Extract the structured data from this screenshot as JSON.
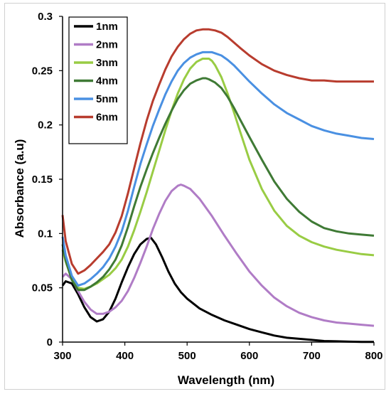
{
  "chart_data": {
    "type": "line",
    "title": "",
    "xlabel": "Wavelength (nm)",
    "ylabel": "Absorbance (a.u)",
    "xlim": [
      300,
      800
    ],
    "ylim": [
      0,
      0.3
    ],
    "x_ticks": [
      "300",
      "400",
      "500",
      "600",
      "700",
      "800"
    ],
    "y_ticks": [
      "0",
      "0.05",
      "0.1",
      "0.15",
      "0.2",
      "0.25",
      "0.3"
    ],
    "grid": false,
    "legend_position": "top-left",
    "series": [
      {
        "name": "1nm",
        "color": "#000000",
        "x": [
          300,
          305,
          315,
          325,
          335,
          345,
          355,
          365,
          375,
          385,
          395,
          405,
          415,
          425,
          435,
          442,
          450,
          460,
          470,
          480,
          490,
          500,
          520,
          540,
          560,
          580,
          600,
          620,
          640,
          660,
          680,
          700,
          720,
          740,
          760,
          780,
          800
        ],
        "y": [
          0.052,
          0.056,
          0.054,
          0.044,
          0.032,
          0.023,
          0.019,
          0.021,
          0.028,
          0.04,
          0.055,
          0.069,
          0.081,
          0.09,
          0.095,
          0.096,
          0.09,
          0.078,
          0.065,
          0.054,
          0.046,
          0.04,
          0.031,
          0.025,
          0.02,
          0.016,
          0.012,
          0.009,
          0.006,
          0.004,
          0.003,
          0.002,
          0.001,
          0.0007,
          0.0004,
          0.0002,
          0.0001
        ]
      },
      {
        "name": "2nm",
        "color": "#b07cc6",
        "x": [
          300,
          305,
          315,
          325,
          335,
          345,
          355,
          365,
          375,
          385,
          395,
          405,
          415,
          425,
          435,
          445,
          455,
          465,
          475,
          485,
          490,
          495,
          505,
          520,
          540,
          560,
          580,
          600,
          620,
          640,
          660,
          680,
          700,
          720,
          740,
          760,
          780,
          800
        ],
        "y": [
          0.06,
          0.063,
          0.058,
          0.047,
          0.037,
          0.03,
          0.026,
          0.026,
          0.028,
          0.032,
          0.038,
          0.047,
          0.059,
          0.073,
          0.088,
          0.104,
          0.118,
          0.13,
          0.139,
          0.144,
          0.145,
          0.144,
          0.141,
          0.132,
          0.116,
          0.098,
          0.081,
          0.065,
          0.052,
          0.041,
          0.033,
          0.027,
          0.023,
          0.02,
          0.018,
          0.017,
          0.016,
          0.015
        ]
      },
      {
        "name": "3nm",
        "color": "#99cc44",
        "x": [
          300,
          305,
          315,
          325,
          335,
          345,
          355,
          365,
          375,
          385,
          395,
          405,
          415,
          425,
          435,
          445,
          455,
          465,
          475,
          485,
          495,
          505,
          515,
          525,
          535,
          540,
          545,
          555,
          565,
          575,
          585,
          600,
          620,
          640,
          660,
          680,
          700,
          720,
          740,
          760,
          780,
          800
        ],
        "y": [
          0.085,
          0.074,
          0.058,
          0.05,
          0.049,
          0.051,
          0.054,
          0.058,
          0.062,
          0.068,
          0.076,
          0.088,
          0.103,
          0.12,
          0.138,
          0.157,
          0.176,
          0.195,
          0.213,
          0.229,
          0.242,
          0.252,
          0.258,
          0.261,
          0.261,
          0.259,
          0.255,
          0.244,
          0.229,
          0.212,
          0.194,
          0.168,
          0.141,
          0.121,
          0.107,
          0.098,
          0.092,
          0.088,
          0.085,
          0.083,
          0.081,
          0.08
        ]
      },
      {
        "name": "4nm",
        "color": "#3f7a35",
        "x": [
          300,
          305,
          315,
          325,
          335,
          345,
          355,
          365,
          375,
          385,
          395,
          405,
          415,
          425,
          435,
          445,
          455,
          465,
          475,
          485,
          495,
          505,
          515,
          525,
          530,
          535,
          545,
          555,
          565,
          575,
          585,
          600,
          620,
          640,
          660,
          680,
          700,
          720,
          740,
          760,
          780,
          800
        ],
        "y": [
          0.09,
          0.075,
          0.057,
          0.048,
          0.048,
          0.051,
          0.055,
          0.06,
          0.067,
          0.076,
          0.089,
          0.106,
          0.125,
          0.143,
          0.159,
          0.174,
          0.188,
          0.201,
          0.213,
          0.224,
          0.232,
          0.238,
          0.241,
          0.243,
          0.243,
          0.242,
          0.239,
          0.234,
          0.226,
          0.216,
          0.205,
          0.189,
          0.168,
          0.148,
          0.132,
          0.12,
          0.111,
          0.105,
          0.102,
          0.1,
          0.099,
          0.098
        ]
      },
      {
        "name": "5nm",
        "color": "#4a90e2",
        "x": [
          300,
          305,
          315,
          325,
          335,
          345,
          355,
          365,
          375,
          385,
          395,
          405,
          415,
          425,
          435,
          445,
          455,
          465,
          475,
          485,
          495,
          505,
          515,
          525,
          535,
          540,
          545,
          555,
          565,
          575,
          585,
          600,
          620,
          640,
          660,
          680,
          700,
          720,
          740,
          760,
          780,
          800
        ],
        "y": [
          0.097,
          0.08,
          0.061,
          0.052,
          0.054,
          0.058,
          0.063,
          0.069,
          0.077,
          0.088,
          0.102,
          0.121,
          0.143,
          0.164,
          0.182,
          0.199,
          0.214,
          0.228,
          0.24,
          0.25,
          0.257,
          0.262,
          0.265,
          0.267,
          0.267,
          0.267,
          0.266,
          0.264,
          0.26,
          0.255,
          0.249,
          0.24,
          0.229,
          0.219,
          0.211,
          0.205,
          0.199,
          0.195,
          0.192,
          0.19,
          0.188,
          0.187
        ]
      },
      {
        "name": "6nm",
        "color": "#b83c2e",
        "x": [
          300,
          305,
          315,
          325,
          335,
          345,
          355,
          365,
          375,
          385,
          395,
          405,
          415,
          425,
          435,
          445,
          455,
          465,
          475,
          485,
          495,
          505,
          515,
          525,
          535,
          545,
          555,
          565,
          575,
          585,
          600,
          620,
          640,
          660,
          680,
          700,
          720,
          740,
          760,
          780,
          800
        ],
        "y": [
          0.117,
          0.093,
          0.072,
          0.063,
          0.066,
          0.071,
          0.077,
          0.083,
          0.09,
          0.101,
          0.116,
          0.137,
          0.16,
          0.183,
          0.204,
          0.222,
          0.237,
          0.251,
          0.263,
          0.272,
          0.279,
          0.284,
          0.287,
          0.288,
          0.288,
          0.287,
          0.285,
          0.281,
          0.276,
          0.271,
          0.264,
          0.256,
          0.25,
          0.246,
          0.243,
          0.241,
          0.241,
          0.24,
          0.24,
          0.24,
          0.24
        ]
      }
    ]
  }
}
